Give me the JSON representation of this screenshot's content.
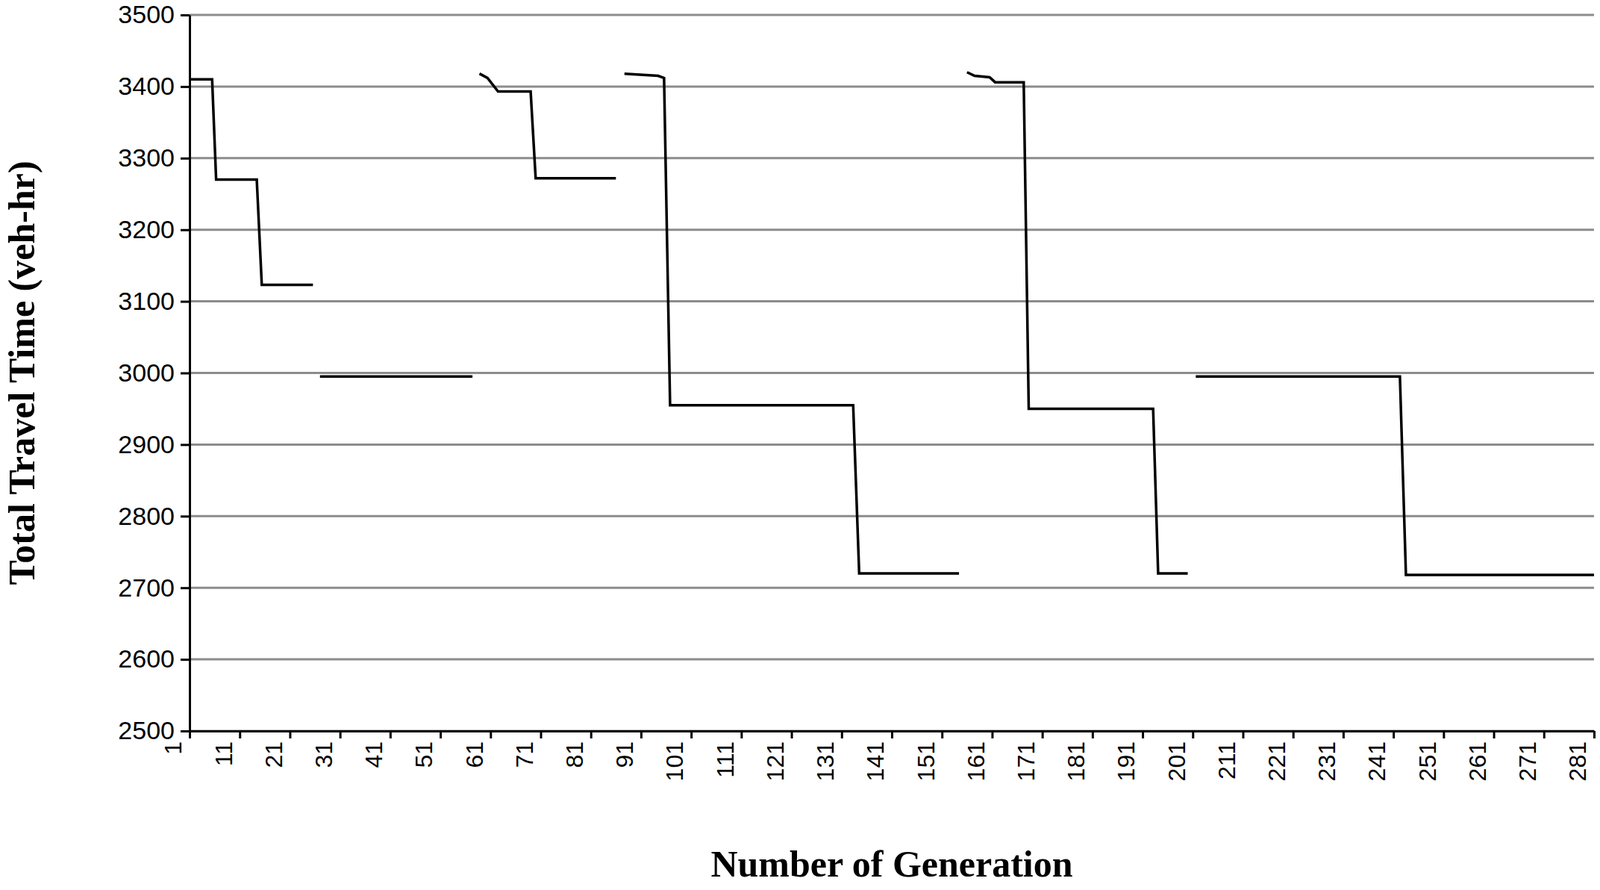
{
  "chart_data": {
    "type": "line",
    "x_label": "Number of Generation",
    "y_label": "Total Travel Time (veh-hr)",
    "x": [
      1,
      5.5,
      6.3,
      14.4,
      15.4,
      25.6,
      26.3,
      27,
      57.4,
      58,
      58.8,
      60.4,
      62.5,
      69,
      70,
      86,
      87,
      87.7,
      94.4,
      95.6,
      96.8,
      133.3,
      134.5,
      154.4,
      155,
      156,
      157.5,
      160.5,
      161.6,
      167.3,
      168.3,
      193.1,
      194.1,
      200,
      201,
      201.6,
      242.3,
      243.5,
      281
    ],
    "series": [
      {
        "color": "#000000",
        "values": [
          3410,
          3410,
          3270,
          3270,
          3123,
          3123,
          null,
          2995,
          2995,
          null,
          3418,
          3412,
          3393,
          3393,
          3272,
          3272,
          null,
          3418,
          3415,
          3412,
          2955,
          2955,
          2720,
          2720,
          null,
          3420,
          3415,
          3413,
          3406,
          3406,
          2950,
          2950,
          2720,
          2720,
          null,
          2995,
          2995,
          2718,
          2718
        ]
      }
    ],
    "xlim": [
      1,
      281
    ],
    "xticks": [
      1,
      11,
      21,
      31,
      41,
      51,
      61,
      71,
      81,
      91,
      101,
      111,
      121,
      131,
      141,
      151,
      161,
      171,
      181,
      191,
      201,
      211,
      221,
      231,
      241,
      251,
      261,
      271,
      281
    ],
    "ylim": [
      2500,
      3500
    ],
    "yticks": [
      2500,
      2600,
      2700,
      2800,
      2900,
      3000,
      3100,
      3200,
      3300,
      3400,
      3500
    ],
    "grid": true
  }
}
